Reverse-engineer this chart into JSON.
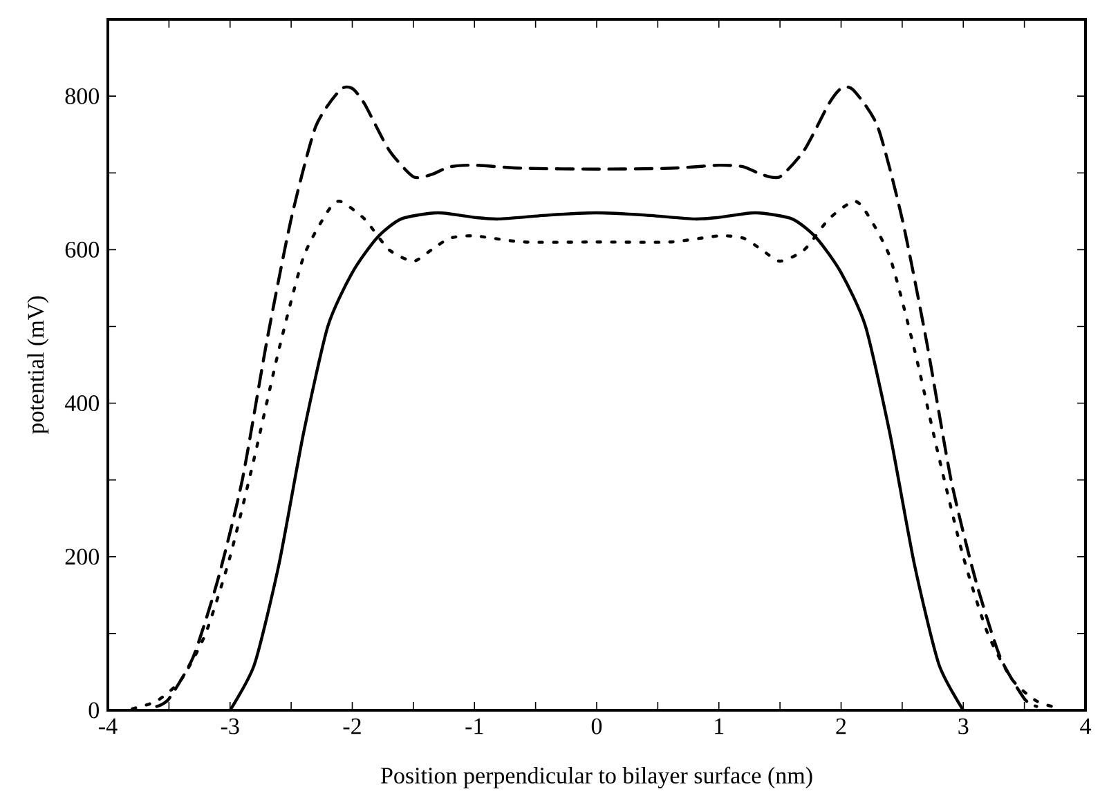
{
  "chart_data": {
    "type": "line",
    "xlabel": "Position perpendicular to bilayer surface (nm)",
    "ylabel": "potential (mV)",
    "xlim": [
      -4,
      4
    ],
    "ylim": [
      0,
      900
    ],
    "xticks": [
      -4,
      {
        "value": -3.5,
        "label": null
      },
      -3,
      {
        "value": -2.5,
        "label": null
      },
      -2,
      {
        "value": -1.5,
        "label": null
      },
      -1,
      {
        "value": -0.5,
        "label": null
      },
      0,
      {
        "value": 0.5,
        "label": null
      },
      1,
      {
        "value": 1.5,
        "label": null
      },
      2,
      {
        "value": 2.5,
        "label": null
      },
      3,
      {
        "value": 3.5,
        "label": null
      },
      4
    ],
    "yticks": [
      0,
      {
        "value": 100,
        "label": null
      },
      200,
      {
        "value": 300,
        "label": null
      },
      400,
      {
        "value": 500,
        "label": null
      },
      600,
      {
        "value": 700,
        "label": null
      },
      800
    ],
    "marker": "none",
    "series": [
      {
        "color": "#000000",
        "line_style": "solid",
        "x": [
          -3.0,
          -2.8,
          -2.6,
          -2.4,
          -2.2,
          -2.0,
          -1.8,
          -1.6,
          -1.3,
          -1.0,
          -0.8,
          -0.4,
          0,
          0.4,
          0.8,
          1.0,
          1.3,
          1.6,
          1.8,
          2.0,
          2.2,
          2.4,
          2.6,
          2.8,
          3.0
        ],
        "values": [
          0,
          60,
          190,
          360,
          500,
          570,
          615,
          640,
          648,
          642,
          640,
          645,
          648,
          645,
          640,
          642,
          648,
          640,
          615,
          570,
          500,
          360,
          190,
          60,
          0
        ]
      },
      {
        "color": "#000000",
        "line_style": "dashed",
        "x": [
          -3.6,
          -3.5,
          -3.3,
          -3.1,
          -2.9,
          -2.7,
          -2.5,
          -2.3,
          -2.1,
          -2.0,
          -1.9,
          -1.7,
          -1.5,
          -1.35,
          -1.2,
          -1.0,
          -0.6,
          0,
          0.6,
          1.0,
          1.2,
          1.35,
          1.5,
          1.7,
          1.9,
          2.0,
          2.1,
          2.3,
          2.5,
          2.7,
          2.9,
          3.1,
          3.3,
          3.5,
          3.6
        ],
        "values": [
          5,
          15,
          70,
          170,
          300,
          480,
          640,
          760,
          808,
          810,
          790,
          730,
          695,
          698,
          708,
          710,
          706,
          705,
          706,
          710,
          708,
          698,
          695,
          730,
          790,
          810,
          808,
          760,
          640,
          480,
          300,
          170,
          70,
          15,
          5
        ]
      },
      {
        "color": "#000000",
        "line_style": "dotted",
        "x": [
          -3.8,
          -3.6,
          -3.4,
          -3.2,
          -3.0,
          -2.8,
          -2.6,
          -2.4,
          -2.2,
          -2.1,
          -1.9,
          -1.7,
          -1.5,
          -1.35,
          -1.2,
          -1.0,
          -0.6,
          0,
          0.6,
          1.0,
          1.2,
          1.35,
          1.5,
          1.7,
          1.9,
          2.1,
          2.2,
          2.4,
          2.6,
          2.8,
          3.0,
          3.2,
          3.4,
          3.6,
          3.8
        ],
        "values": [
          2,
          12,
          40,
          100,
          200,
          330,
          470,
          590,
          650,
          663,
          640,
          600,
          585,
          600,
          615,
          618,
          610,
          610,
          610,
          618,
          615,
          600,
          585,
          600,
          640,
          663,
          650,
          590,
          470,
          330,
          200,
          100,
          40,
          12,
          2
        ]
      }
    ]
  }
}
